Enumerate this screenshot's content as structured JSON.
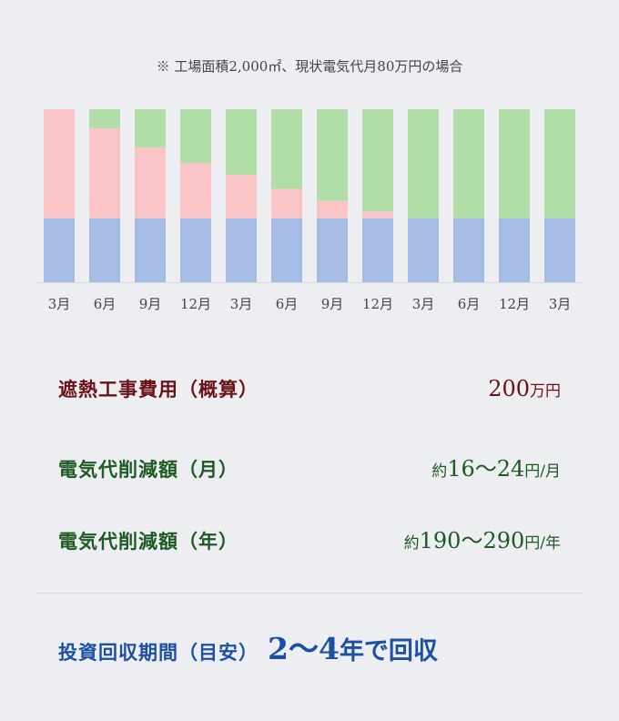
{
  "note": "※ 工場面積2,000㎡、現状電気代月80万円の場合",
  "colors": {
    "base": "#a7bce4",
    "pink": "#fbc5c8",
    "green": "#b1dda6",
    "cost_text": "#6b1217",
    "saving_text": "#1e5a22",
    "payback_text": "#1d4fa2"
  },
  "chart_data": {
    "type": "bar",
    "stacked": true,
    "categories": [
      "3月",
      "6月",
      "9月",
      "12月",
      "3月",
      "6月",
      "9月",
      "12月",
      "3月",
      "6月",
      "12月",
      "3月"
    ],
    "series": [
      {
        "key": "base",
        "values": [
          37,
          37,
          37,
          37,
          37,
          37,
          37,
          37,
          37,
          37,
          37,
          37
        ]
      },
      {
        "key": "pink",
        "values": [
          63,
          52,
          41,
          32,
          25,
          17,
          10,
          4,
          0,
          0,
          0,
          0
        ]
      },
      {
        "key": "green",
        "values": [
          0,
          11,
          22,
          31,
          38,
          46,
          53,
          59,
          63,
          63,
          63,
          63
        ]
      }
    ],
    "ylim": [
      0,
      100
    ],
    "grid": false,
    "legend": "none"
  },
  "rows": [
    {
      "label": "遮熱工事費用（概算）",
      "prefix": "",
      "number": "200",
      "unit": "万円"
    },
    {
      "label": "電気代削減額（月）",
      "prefix": "約",
      "number": "16〜24",
      "unit": "円/月"
    },
    {
      "label": "電気代削減額（年）",
      "prefix": "約",
      "number": "190〜290",
      "unit": "円/年"
    }
  ],
  "payback": {
    "label": "投資回収期間（目安）",
    "value": "2〜4",
    "suffix": "年で回収"
  }
}
